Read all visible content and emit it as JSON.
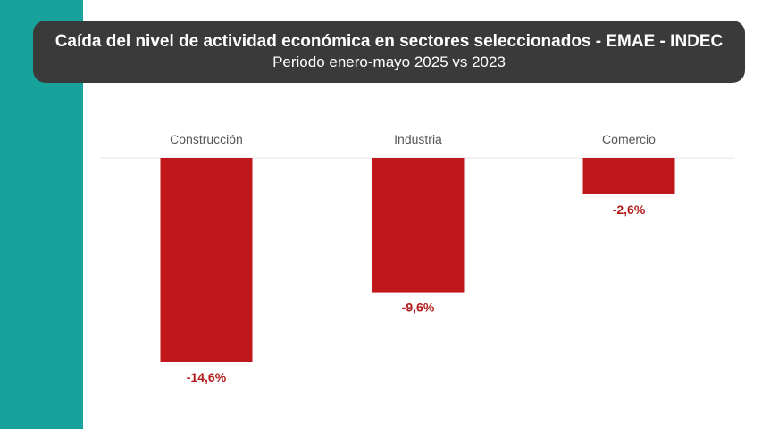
{
  "colors": {
    "side_band": "#17a39c",
    "title_bg": "#3a3a3a",
    "bar": "#c0171a",
    "baseline": "#e6e6e6",
    "value_label": "#b31b1b"
  },
  "header": {
    "title": "Caída del nivel de actividad económica en sectores seleccionados - EMAE - INDEC",
    "subtitle": "Periodo enero-mayo 2025 vs 2023"
  },
  "chart_data": {
    "type": "bar",
    "categories": [
      "Construcción",
      "Industria",
      "Comercio"
    ],
    "values": [
      -14.6,
      -9.6,
      -2.6
    ],
    "value_labels": [
      "-14,6%",
      "-9,6%",
      "-2,6%"
    ],
    "title": "Caída del nivel de actividad económica en sectores seleccionados - EMAE - INDEC",
    "subtitle": "Periodo enero-mayo 2025 vs 2023",
    "xlabel": "",
    "ylabel": "",
    "ylim": [
      -16,
      0
    ],
    "grid": false,
    "legend": "none",
    "category_axis_position": "top"
  }
}
